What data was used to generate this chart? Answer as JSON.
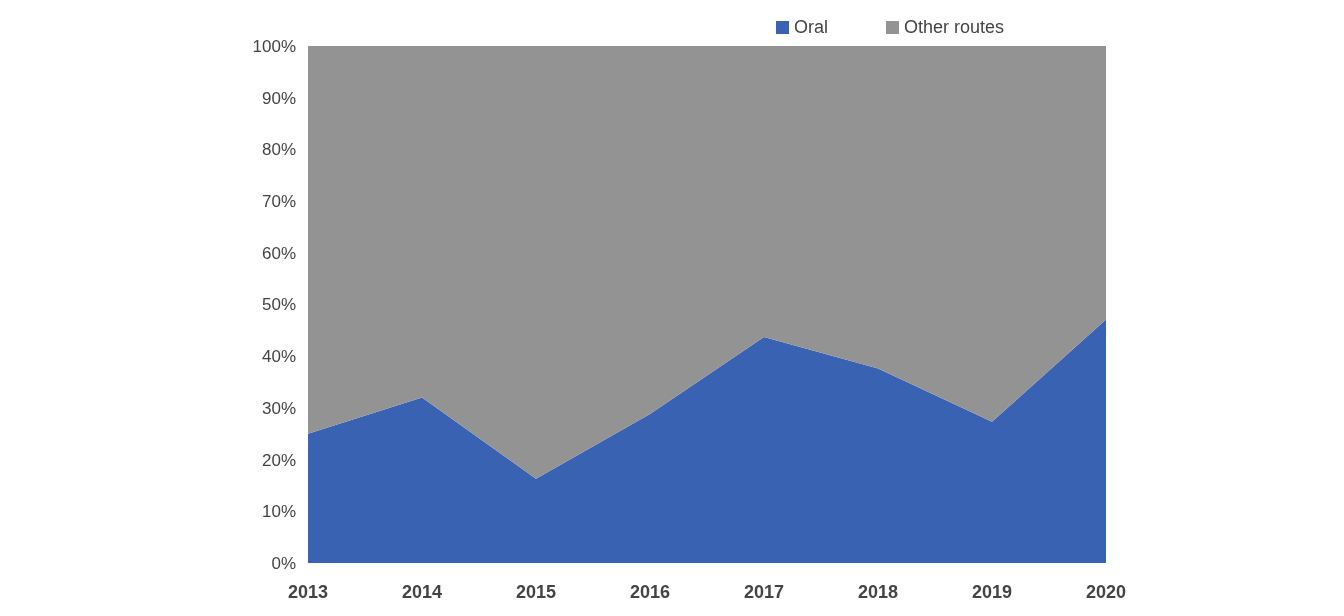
{
  "chart_data": {
    "type": "area",
    "stacked": true,
    "categories": [
      "2013",
      "2014",
      "2015",
      "2016",
      "2017",
      "2018",
      "2019",
      "2020"
    ],
    "series": [
      {
        "name": "Oral",
        "color": "#3a62b3",
        "values": [
          25,
          32,
          16.3,
          28.8,
          43.7,
          37.6,
          27.3,
          47.1
        ]
      },
      {
        "name": "Other routes",
        "color": "#939393",
        "values": [
          75,
          68,
          83.7,
          71.2,
          56.3,
          62.4,
          72.7,
          52.9
        ]
      }
    ],
    "ylim": [
      0,
      100
    ],
    "yticks": [
      {
        "value": 0,
        "label": "0%"
      },
      {
        "value": 10,
        "label": "10%"
      },
      {
        "value": 20,
        "label": "20%"
      },
      {
        "value": 30,
        "label": "30%"
      },
      {
        "value": 40,
        "label": "40%"
      },
      {
        "value": 50,
        "label": "50%"
      },
      {
        "value": 60,
        "label": "60%"
      },
      {
        "value": 70,
        "label": "70%"
      },
      {
        "value": 80,
        "label": "80%"
      },
      {
        "value": 90,
        "label": "90%"
      },
      {
        "value": 100,
        "label": "100%"
      }
    ],
    "legend": "top right"
  }
}
